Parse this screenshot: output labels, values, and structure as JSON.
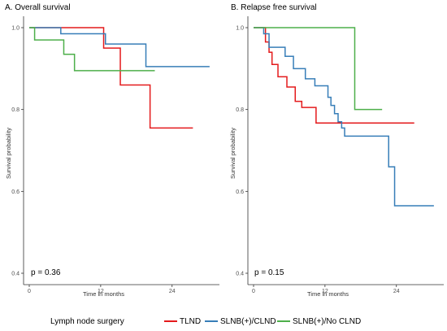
{
  "colors": {
    "TLND": "#e41a1c",
    "SLNB(+)/CLND": "#377eb8",
    "SLNB(+)/No CLND": "#4daf4a"
  },
  "legend": {
    "title": "Lymph node surgery",
    "entries": [
      "TLND",
      "SLNB(+)/CLND",
      "SLNB(+)/No CLND"
    ],
    "placement": "bottom"
  },
  "chart_data": [
    {
      "type": "line",
      "step": true,
      "title": "A. Overall survival",
      "xlabel": "Time in months",
      "ylabel": "Survival probability",
      "xlim": [
        0,
        31
      ],
      "ylim": [
        0.39,
        1.0
      ],
      "xticks": [
        0,
        12,
        24
      ],
      "yticks": [
        0.4,
        0.6,
        0.8,
        1.0
      ],
      "ytick_labels": [
        "0.4",
        "0.6",
        "0.8",
        "1.0"
      ],
      "annotation": "p = 0.36",
      "grid": false,
      "series": [
        {
          "name": "TLND",
          "x": [
            0,
            12.5,
            15.3,
            20.3,
            27.5
          ],
          "y": [
            1.0,
            0.95,
            0.86,
            0.755,
            0.755
          ]
        },
        {
          "name": "SLNB(+)/CLND",
          "x": [
            0,
            5.3,
            12.8,
            19.6,
            30.3
          ],
          "y": [
            1.0,
            0.985,
            0.96,
            0.905,
            0.905
          ]
        },
        {
          "name": "SLNB(+)/No CLND",
          "x": [
            0,
            0.9,
            5.8,
            7.6,
            21.1
          ],
          "y": [
            1.0,
            0.97,
            0.935,
            0.895,
            0.895
          ]
        }
      ]
    },
    {
      "type": "line",
      "step": true,
      "title": "B. Relapse free survival",
      "xlabel": "Time in months",
      "ylabel": "Survival probability",
      "xlim": [
        0,
        31
      ],
      "ylim": [
        0.39,
        1.0
      ],
      "xticks": [
        0,
        12,
        24
      ],
      "yticks": [
        0.4,
        0.6,
        0.8,
        1.0
      ],
      "ytick_labels": [
        "0.4",
        "0.6",
        "0.8",
        "1.0"
      ],
      "annotation": "p = 0.15",
      "grid": false,
      "series": [
        {
          "name": "TLND",
          "x": [
            0,
            2.0,
            2.6,
            3.1,
            4.1,
            5.6,
            7.0,
            8.1,
            10.5,
            27.0
          ],
          "y": [
            1.0,
            0.965,
            0.94,
            0.91,
            0.88,
            0.855,
            0.82,
            0.805,
            0.767,
            0.767
          ]
        },
        {
          "name": "SLNB(+)/CLND",
          "x": [
            0,
            1.7,
            2.6,
            5.3,
            6.7,
            8.7,
            10.3,
            12.5,
            13.0,
            13.6,
            14.2,
            14.8,
            15.3,
            22.7,
            23.7,
            30.3
          ],
          "y": [
            1.0,
            0.985,
            0.952,
            0.93,
            0.9,
            0.875,
            0.858,
            0.83,
            0.81,
            0.79,
            0.77,
            0.755,
            0.735,
            0.66,
            0.565,
            0.565
          ]
        },
        {
          "name": "SLNB(+)/No CLND",
          "x": [
            0,
            17.0,
            21.6
          ],
          "y": [
            1.0,
            0.8,
            0.8
          ]
        }
      ]
    }
  ]
}
